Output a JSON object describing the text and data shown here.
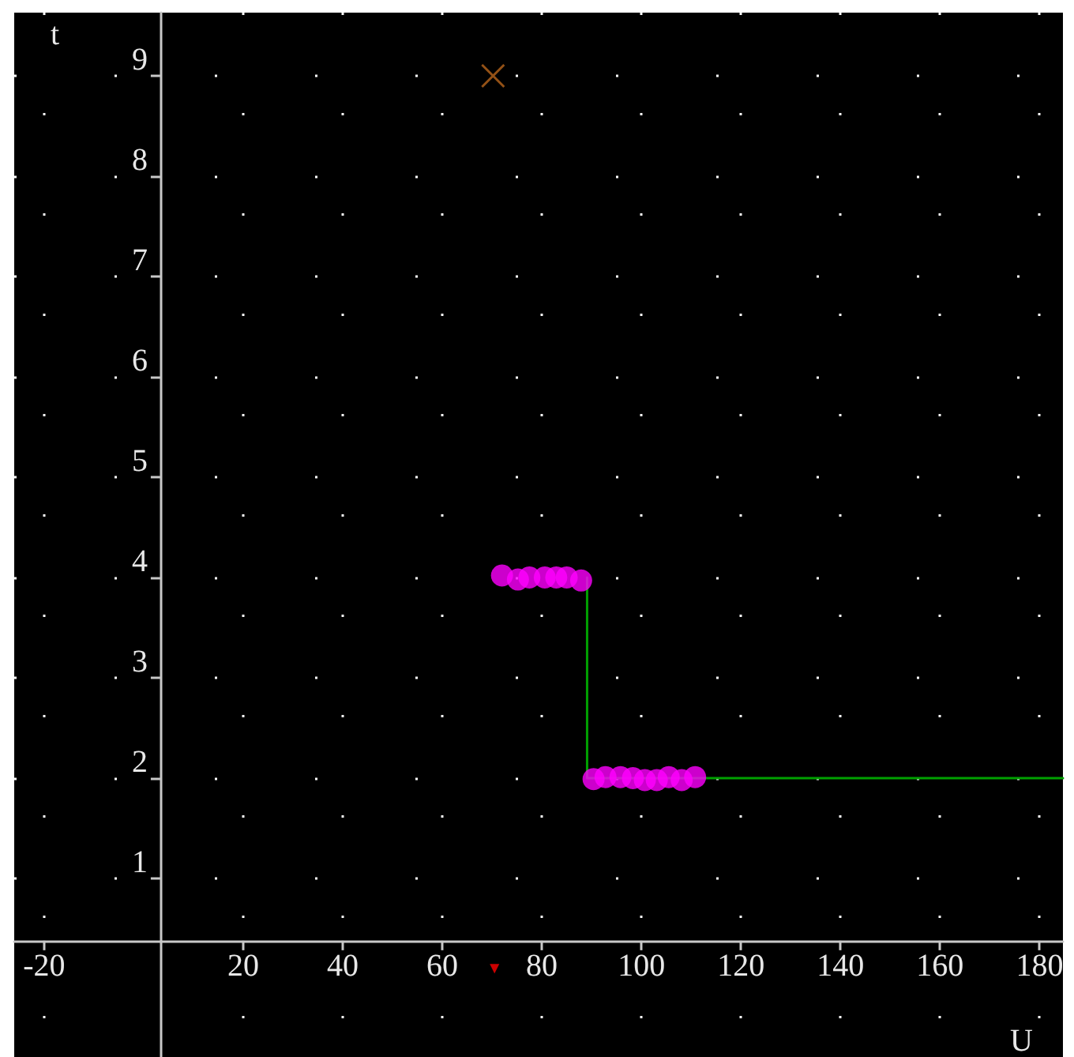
{
  "chart_data": {
    "type": "scatter",
    "xlabel": "U",
    "ylabel": "t",
    "xlim": [
      -26,
      184.7
    ],
    "ylim": [
      -0.78,
      9.63
    ],
    "xticks": [
      -20,
      20,
      40,
      60,
      80,
      100,
      120,
      140,
      160,
      180
    ],
    "yticks": [
      1,
      2,
      3,
      4,
      5,
      6,
      7,
      8,
      9
    ],
    "grid": true,
    "series": [
      {
        "marker": "circle",
        "color": "#ff00ff",
        "x": [
          72,
          75.2,
          77.5,
          80.6,
          82.9,
          85,
          87.9,
          90.4,
          92.8,
          95.8,
          98.3,
          100.7,
          103.1,
          105.5,
          108.1,
          110.8
        ],
        "values": [
          4.02,
          3.98,
          4.0,
          4.0,
          4.0,
          4.0,
          3.97,
          1.99,
          2.01,
          2.01,
          2.0,
          1.98,
          1.98,
          2.01,
          1.98,
          2.01
        ]
      },
      {
        "type": "line",
        "marker": "none",
        "color": "#00a000",
        "x": [
          89.1,
          89.1,
          184.7
        ],
        "values": [
          4,
          2,
          2
        ]
      },
      {
        "marker": "cross",
        "color": "#b8651b",
        "x": [
          70.2
        ],
        "values": [
          9.0
        ]
      },
      {
        "marker": "triangle",
        "color": "#ff0000",
        "x": [
          70.5
        ],
        "values": [
          0.1
        ]
      }
    ]
  }
}
